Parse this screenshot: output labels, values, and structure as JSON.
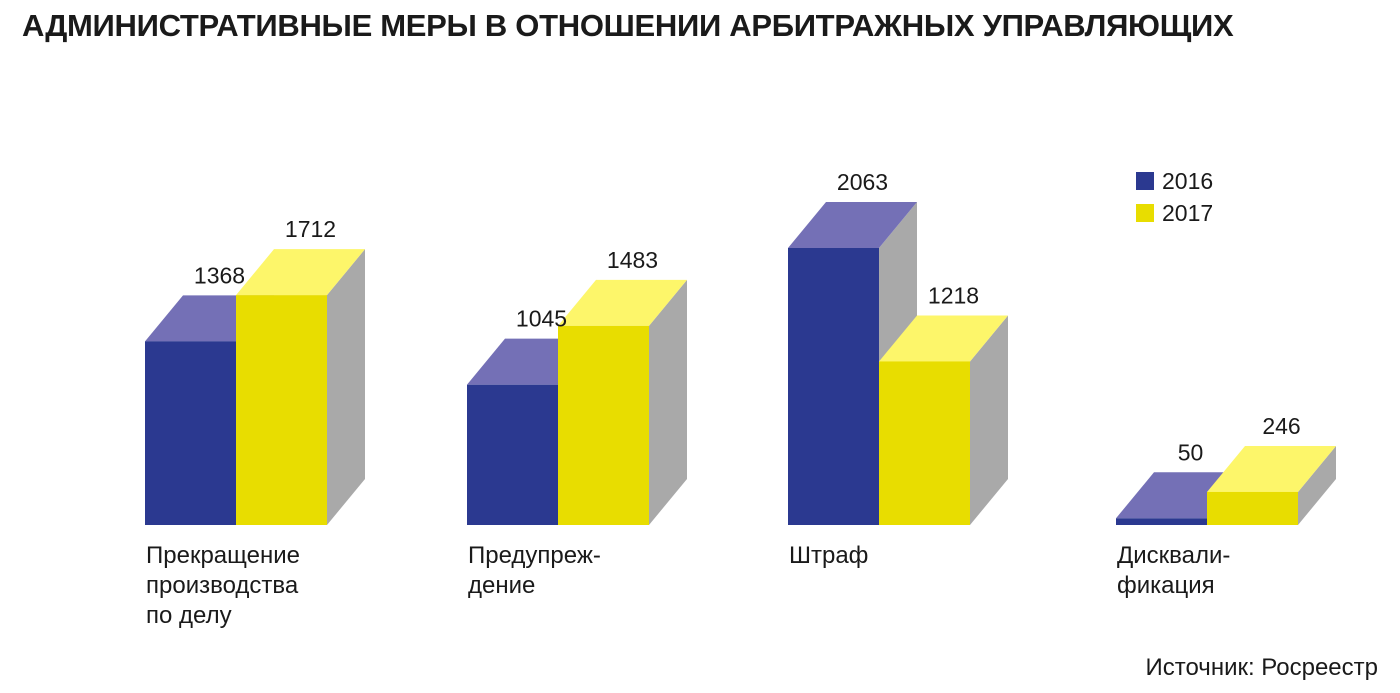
{
  "chart_data": {
    "type": "bar",
    "title": "АДМИНИСТРАТИВНЫЕ МЕРЫ В ОТНОШЕНИИ АРБИТРАЖНЫХ УПРАВЛЯЮЩИХ",
    "categories": [
      [
        "Прекращение",
        "производства",
        "по делу"
      ],
      [
        "Предупреж-",
        "дение"
      ],
      [
        "Штраф"
      ],
      [
        "Дисквали-",
        "фикация"
      ]
    ],
    "series": [
      {
        "name": "2016",
        "values": [
          1368,
          1045,
          2063,
          50
        ],
        "color": "#2b3990",
        "top_color": "#7470b6"
      },
      {
        "name": "2017",
        "values": [
          1712,
          1483,
          1218,
          246
        ],
        "color": "#e8dd00",
        "top_color": "#fdf66a"
      }
    ],
    "side_color": "#a9a9a9",
    "ylim": [
      0,
      2063
    ],
    "three_d": true,
    "legend_position": "top-right",
    "grid": false
  },
  "source": "Источник: Росреестр"
}
